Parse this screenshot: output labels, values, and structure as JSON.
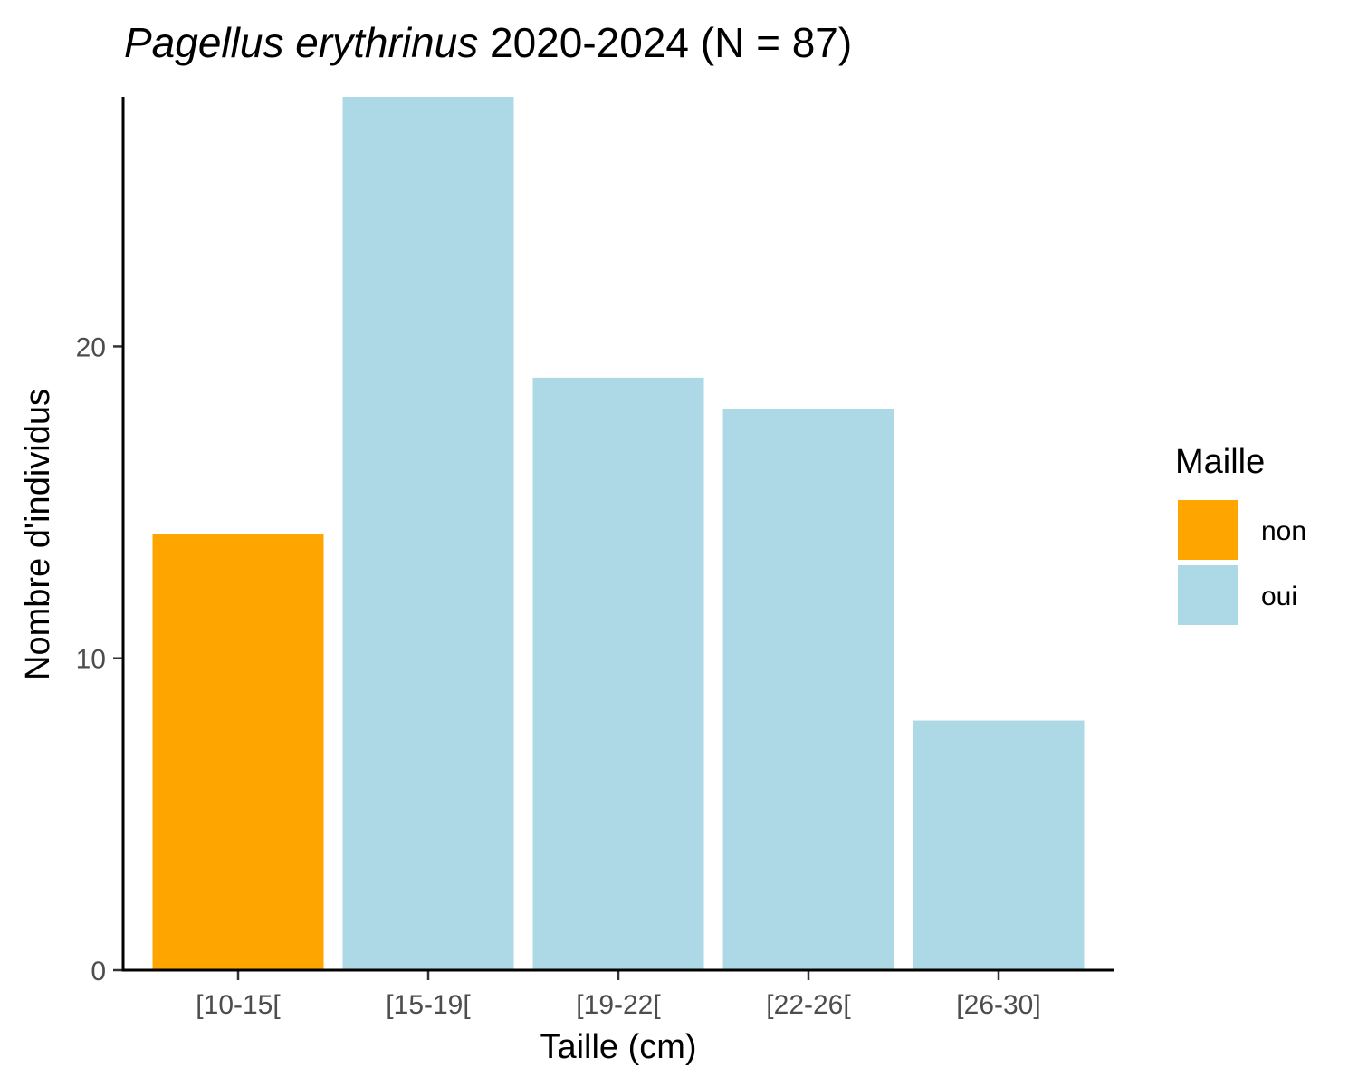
{
  "chart_data": {
    "type": "bar",
    "title_italic": "Pagellus erythrinus",
    "title_rest": " 2020-2024 (N = 87)",
    "xlabel": "Taille (cm)",
    "ylabel": "Nombre d'individus",
    "categories": [
      "[10-15[",
      "[15-19[",
      "[19-22[",
      "[22-26[",
      "[26-30]"
    ],
    "values": [
      14,
      28,
      19,
      18,
      8
    ],
    "groups": [
      "non",
      "oui",
      "oui",
      "oui",
      "oui"
    ],
    "ylim": [
      0,
      28
    ],
    "yticks": [
      0,
      10,
      20
    ],
    "grid": false,
    "legend": {
      "title": "Maille",
      "position": "right",
      "items": [
        {
          "label": "non",
          "color": "#FFA500"
        },
        {
          "label": "oui",
          "color": "#ADD8E6"
        }
      ]
    }
  }
}
